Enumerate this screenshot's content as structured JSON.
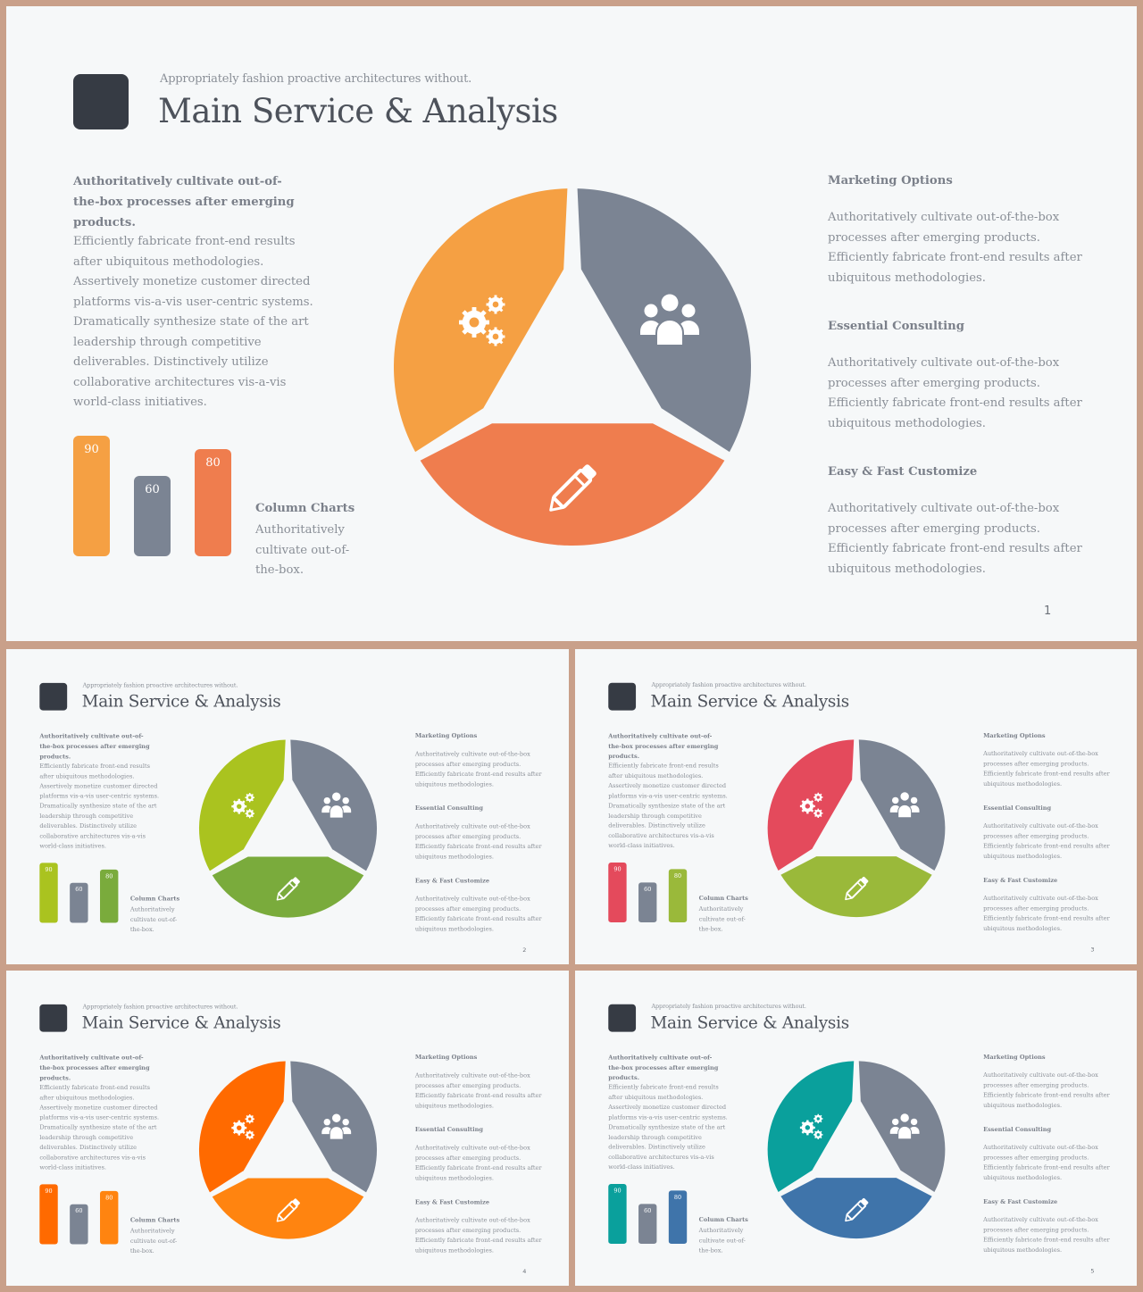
{
  "tagline": "Appropriately fashion proactive architectures without.",
  "title": "Main Service & Analysis",
  "lead": "Authoritatively cultivate out-of-the-box processes after emerging products.",
  "body": "Efficiently fabricate front-end results after ubiquitous methodologies. Assertively monetize customer directed platforms vis-a-vis user-centric systems. Dramatically synthesize state of the art leadership through competitive deliverables. Distinctively utilize collaborative architectures vis-a-vis world-class initiatives.",
  "sections": [
    {
      "heading": "Marketing Options",
      "text": "Authoritatively cultivate out-of-the-box processes after emerging products. Efficiently fabricate front-end results after ubiquitous methodologies."
    },
    {
      "heading": "Essential Consulting",
      "text": "Authoritatively cultivate out-of-the-box processes after emerging products. Efficiently fabricate front-end results after ubiquitous methodologies."
    },
    {
      "heading": "Easy & Fast Customize",
      "text": "Authoritatively cultivate out-of-the-box processes after emerging products. Efficiently fabricate front-end results after ubiquitous methodologies."
    }
  ],
  "column_charts": {
    "heading": "Column Charts",
    "text": "Authoritatively cultivate out-of-the-box."
  },
  "icons": [
    "gears-icon",
    "users-icon",
    "pencil-icon"
  ],
  "chart_data": {
    "type": "bar",
    "categories": [
      "",
      "",
      ""
    ],
    "values": [
      90,
      60,
      80
    ],
    "ylim": [
      0,
      100
    ]
  },
  "slides": [
    {
      "number": "1",
      "colors": {
        "a": "#f5a043",
        "b": "#7b8493",
        "c": "#ef7d4e"
      }
    },
    {
      "number": "2",
      "colors": {
        "a": "#aac31f",
        "b": "#7b8493",
        "c": "#7aab3c"
      }
    },
    {
      "number": "3",
      "colors": {
        "a": "#e44a5c",
        "b": "#7b8493",
        "c": "#9ab93a"
      }
    },
    {
      "number": "4",
      "colors": {
        "a": "#ff6a00",
        "b": "#7b8493",
        "c": "#ff8410"
      }
    },
    {
      "number": "5",
      "colors": {
        "a": "#0aa09c",
        "b": "#7b8493",
        "c": "#3f74aa"
      }
    }
  ]
}
